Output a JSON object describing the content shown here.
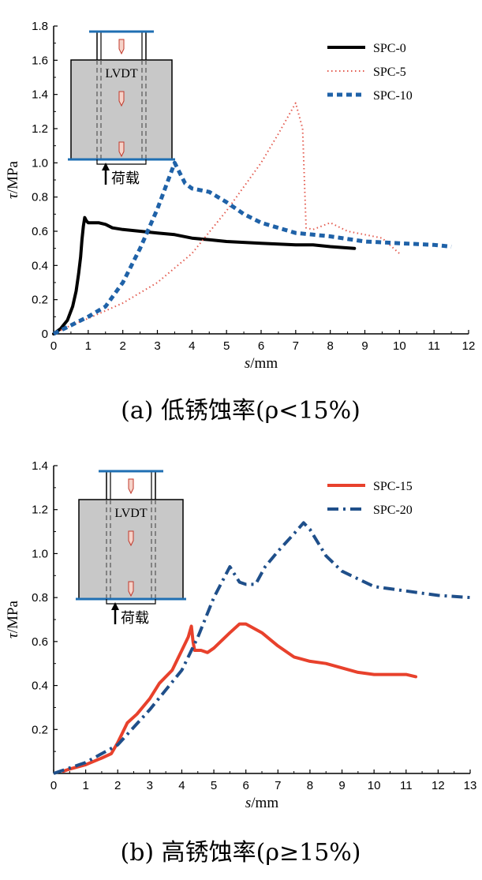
{
  "chart_data": [
    {
      "type": "line",
      "caption": "(a) 低锈蚀率(ρ<15%)",
      "xlabel_var": "s",
      "xlabel_unit": "/mm",
      "ylabel_var": "τ",
      "ylabel_unit": "/MPa",
      "xlim": [
        0,
        12
      ],
      "ylim": [
        0,
        1.8
      ],
      "x_ticks": [
        0,
        1,
        2,
        3,
        4,
        5,
        6,
        7,
        8,
        9,
        10,
        11,
        12
      ],
      "y_ticks": [
        0,
        0.2,
        0.4,
        0.6,
        0.8,
        1.0,
        1.2,
        1.4,
        1.6,
        1.8
      ],
      "y_tick_labels": [
        "0",
        "0.2",
        "0.4",
        "0.6",
        "0.8",
        "1.0",
        "1.2",
        "1.4",
        "1.6",
        "1.8"
      ],
      "legend_position": "top-right",
      "inset": {
        "sensor_label": "LVDT",
        "load_label": "荷载"
      },
      "series": [
        {
          "name": "SPC-0",
          "color": "#000000",
          "style": "solid",
          "points": [
            [
              0,
              0
            ],
            [
              0.2,
              0.03
            ],
            [
              0.4,
              0.08
            ],
            [
              0.55,
              0.16
            ],
            [
              0.65,
              0.25
            ],
            [
              0.72,
              0.35
            ],
            [
              0.78,
              0.45
            ],
            [
              0.82,
              0.55
            ],
            [
              0.86,
              0.63
            ],
            [
              0.9,
              0.68
            ],
            [
              0.95,
              0.66
            ],
            [
              1.0,
              0.65
            ],
            [
              1.3,
              0.65
            ],
            [
              1.5,
              0.64
            ],
            [
              1.7,
              0.62
            ],
            [
              2.0,
              0.61
            ],
            [
              2.5,
              0.6
            ],
            [
              3.0,
              0.59
            ],
            [
              3.5,
              0.58
            ],
            [
              4.0,
              0.56
            ],
            [
              4.5,
              0.55
            ],
            [
              5.0,
              0.54
            ],
            [
              6.0,
              0.53
            ],
            [
              7.0,
              0.52
            ],
            [
              7.5,
              0.52
            ],
            [
              8.0,
              0.51
            ],
            [
              8.7,
              0.5
            ]
          ]
        },
        {
          "name": "SPC-5",
          "color": "#e35b4f",
          "style": "dotted",
          "points": [
            [
              0,
              0
            ],
            [
              0.5,
              0.05
            ],
            [
              1,
              0.09
            ],
            [
              2,
              0.18
            ],
            [
              3,
              0.3
            ],
            [
              4,
              0.47
            ],
            [
              5,
              0.72
            ],
            [
              6,
              1.0
            ],
            [
              6.5,
              1.17
            ],
            [
              7.0,
              1.35
            ],
            [
              7.2,
              1.2
            ],
            [
              7.3,
              0.62
            ],
            [
              7.5,
              0.61
            ],
            [
              8.0,
              0.65
            ],
            [
              8.5,
              0.6
            ],
            [
              9.0,
              0.58
            ],
            [
              9.5,
              0.56
            ],
            [
              10.0,
              0.47
            ]
          ]
        },
        {
          "name": "SPC-10",
          "color": "#1f62a8",
          "style": "dashed",
          "points": [
            [
              0,
              0
            ],
            [
              0.5,
              0.05
            ],
            [
              1.0,
              0.1
            ],
            [
              1.5,
              0.16
            ],
            [
              2.0,
              0.3
            ],
            [
              2.5,
              0.5
            ],
            [
              3.0,
              0.73
            ],
            [
              3.5,
              1.0
            ],
            [
              3.8,
              0.88
            ],
            [
              4.0,
              0.85
            ],
            [
              4.5,
              0.83
            ],
            [
              5.0,
              0.77
            ],
            [
              5.5,
              0.7
            ],
            [
              6.0,
              0.65
            ],
            [
              6.5,
              0.62
            ],
            [
              7.0,
              0.59
            ],
            [
              7.5,
              0.58
            ],
            [
              8.0,
              0.57
            ],
            [
              9.0,
              0.54
            ],
            [
              10.0,
              0.53
            ],
            [
              11.0,
              0.52
            ],
            [
              11.5,
              0.51
            ]
          ]
        }
      ]
    },
    {
      "type": "line",
      "caption": "(b) 高锈蚀率(ρ≥15%)",
      "xlabel_var": "s",
      "xlabel_unit": "/mm",
      "ylabel_var": "τ",
      "ylabel_unit": "/MPa",
      "xlim": [
        0,
        13
      ],
      "ylim": [
        0,
        1.4
      ],
      "x_ticks": [
        0,
        1,
        2,
        3,
        4,
        5,
        6,
        7,
        8,
        9,
        10,
        11,
        12,
        13
      ],
      "y_ticks": [
        0.2,
        0.4,
        0.6,
        0.8,
        1.0,
        1.2,
        1.4
      ],
      "y_tick_labels": [
        "0.2",
        "0.4",
        "0.6",
        "0.8",
        "1.0",
        "1.2",
        "1.4"
      ],
      "legend_position": "top-right",
      "inset": {
        "sensor_label": "LVDT",
        "load_label": "荷载"
      },
      "series": [
        {
          "name": "SPC-15",
          "color": "#e8412c",
          "style": "solid",
          "points": [
            [
              0.3,
              0.01
            ],
            [
              0.5,
              0.02
            ],
            [
              1.0,
              0.04
            ],
            [
              1.5,
              0.07
            ],
            [
              1.8,
              0.09
            ],
            [
              2.0,
              0.14
            ],
            [
              2.3,
              0.23
            ],
            [
              2.6,
              0.27
            ],
            [
              3.0,
              0.34
            ],
            [
              3.3,
              0.41
            ],
            [
              3.7,
              0.47
            ],
            [
              4.0,
              0.56
            ],
            [
              4.2,
              0.62
            ],
            [
              4.3,
              0.67
            ],
            [
              4.35,
              0.6
            ],
            [
              4.4,
              0.56
            ],
            [
              4.6,
              0.56
            ],
            [
              4.8,
              0.55
            ],
            [
              5.0,
              0.57
            ],
            [
              5.5,
              0.64
            ],
            [
              5.8,
              0.68
            ],
            [
              6.0,
              0.68
            ],
            [
              6.5,
              0.64
            ],
            [
              7.0,
              0.58
            ],
            [
              7.5,
              0.53
            ],
            [
              8.0,
              0.51
            ],
            [
              8.5,
              0.5
            ],
            [
              9.0,
              0.48
            ],
            [
              9.5,
              0.46
            ],
            [
              10.0,
              0.45
            ],
            [
              10.5,
              0.45
            ],
            [
              11.0,
              0.45
            ],
            [
              11.3,
              0.44
            ]
          ]
        },
        {
          "name": "SPC-20",
          "color": "#1f4f8a",
          "style": "dashdot",
          "points": [
            [
              0,
              0
            ],
            [
              1.0,
              0.05
            ],
            [
              2.0,
              0.13
            ],
            [
              3.0,
              0.29
            ],
            [
              4.0,
              0.47
            ],
            [
              4.5,
              0.62
            ],
            [
              5.0,
              0.8
            ],
            [
              5.5,
              0.94
            ],
            [
              5.8,
              0.87
            ],
            [
              6.0,
              0.86
            ],
            [
              6.3,
              0.86
            ],
            [
              6.6,
              0.94
            ],
            [
              7.0,
              1.01
            ],
            [
              7.5,
              1.09
            ],
            [
              7.8,
              1.14
            ],
            [
              8.0,
              1.11
            ],
            [
              8.5,
              0.99
            ],
            [
              9.0,
              0.92
            ],
            [
              10.0,
              0.85
            ],
            [
              11.0,
              0.83
            ],
            [
              12.0,
              0.81
            ],
            [
              13.0,
              0.8
            ]
          ]
        }
      ]
    }
  ]
}
